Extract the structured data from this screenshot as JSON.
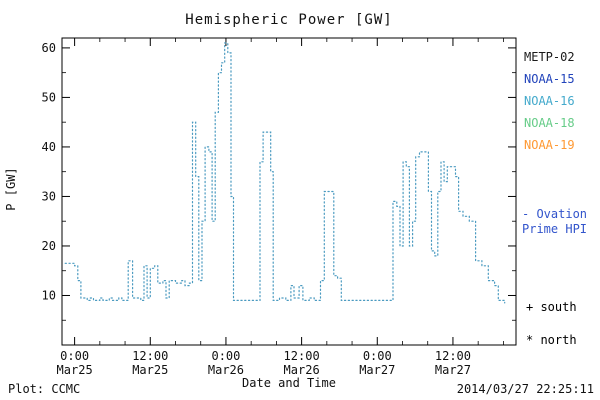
{
  "footer": {
    "left": "Plot: CCMC",
    "right": "2014/03/27 22:25:11"
  },
  "legend": [
    {
      "label": "METP-02",
      "color": "#1a1a1a"
    },
    {
      "label": "NOAA-15",
      "color": "#2244bb"
    },
    {
      "label": "NOAA-16",
      "color": "#44aacc"
    },
    {
      "label": "NOAA-18",
      "color": "#66cc88"
    },
    {
      "label": "NOAA-19",
      "color": "#ff9933"
    }
  ],
  "side_labels": {
    "ovation": {
      "line1": "- Ovation",
      "line2": "Prime HPI",
      "color": "#3355cc"
    },
    "south": {
      "label": "+ south",
      "color": "#000000"
    },
    "north": {
      "label": "* north",
      "color": "#000000"
    }
  },
  "chart_data": {
    "type": "line",
    "step": true,
    "style": "dotted",
    "color": "#4a9ac0",
    "title": "Hemispheric Power [GW]",
    "xlabel": "Date and Time",
    "ylabel": "P [GW]",
    "x_unit": "hours since 2014-03-25 00:00 UT",
    "xlim": [
      -2,
      70
    ],
    "ylim": [
      0,
      62
    ],
    "yticks": [
      10,
      20,
      30,
      40,
      50,
      60
    ],
    "x_minor_step": 4,
    "y_minor_step": 5,
    "xticks": [
      {
        "hour": 0,
        "time": "0:00",
        "date": "Mar25"
      },
      {
        "hour": 12,
        "time": "12:00",
        "date": "Mar25"
      },
      {
        "hour": 24,
        "time": "0:00",
        "date": "Mar26"
      },
      {
        "hour": 36,
        "time": "12:00",
        "date": "Mar26"
      },
      {
        "hour": 48,
        "time": "0:00",
        "date": "Mar27"
      },
      {
        "hour": 60,
        "time": "12:00",
        "date": "Mar27"
      }
    ],
    "points": [
      [
        -1.5,
        16.5
      ],
      [
        0,
        16
      ],
      [
        0.5,
        13
      ],
      [
        1,
        9.5
      ],
      [
        2,
        9
      ],
      [
        2.5,
        9.5
      ],
      [
        3,
        9
      ],
      [
        4,
        9.5
      ],
      [
        4.5,
        9
      ],
      [
        5.5,
        9.5
      ],
      [
        6,
        9
      ],
      [
        7,
        9.5
      ],
      [
        7.5,
        9
      ],
      [
        8.5,
        17
      ],
      [
        9.2,
        9.5
      ],
      [
        10.5,
        9
      ],
      [
        11,
        16
      ],
      [
        11.5,
        9.5
      ],
      [
        12,
        15.5
      ],
      [
        12.7,
        16
      ],
      [
        13.2,
        12.5
      ],
      [
        14,
        13
      ],
      [
        14.5,
        9.5
      ],
      [
        15,
        13
      ],
      [
        16,
        12.5
      ],
      [
        17,
        13
      ],
      [
        17.5,
        12
      ],
      [
        18.2,
        12.5
      ],
      [
        18.7,
        45
      ],
      [
        19.2,
        34
      ],
      [
        19.7,
        13
      ],
      [
        20.2,
        25
      ],
      [
        20.7,
        40
      ],
      [
        21.3,
        39
      ],
      [
        21.8,
        25
      ],
      [
        22.3,
        47
      ],
      [
        22.8,
        55
      ],
      [
        23.3,
        57
      ],
      [
        23.8,
        61
      ],
      [
        24.3,
        59
      ],
      [
        24.8,
        30
      ],
      [
        25.2,
        9
      ],
      [
        29,
        9
      ],
      [
        29.4,
        37
      ],
      [
        29.9,
        43
      ],
      [
        30.6,
        43
      ],
      [
        31.1,
        35
      ],
      [
        31.5,
        9
      ],
      [
        32.5,
        9.5
      ],
      [
        33.5,
        9
      ],
      [
        34.3,
        12
      ],
      [
        34.8,
        9.5
      ],
      [
        35.6,
        12
      ],
      [
        36.2,
        9
      ],
      [
        37.2,
        9.5
      ],
      [
        38,
        9
      ],
      [
        39,
        13
      ],
      [
        39.6,
        31
      ],
      [
        40.6,
        31
      ],
      [
        41.1,
        14
      ],
      [
        41.7,
        13.5
      ],
      [
        42.3,
        9
      ],
      [
        50,
        9
      ],
      [
        50.5,
        29
      ],
      [
        51.1,
        28
      ],
      [
        51.6,
        20
      ],
      [
        52.1,
        37
      ],
      [
        52.6,
        36
      ],
      [
        53.1,
        20
      ],
      [
        53.6,
        25
      ],
      [
        54.1,
        38
      ],
      [
        54.7,
        39
      ],
      [
        55.6,
        39
      ],
      [
        56.1,
        31
      ],
      [
        56.6,
        19
      ],
      [
        57.1,
        18
      ],
      [
        57.6,
        31
      ],
      [
        58.1,
        37
      ],
      [
        58.6,
        33
      ],
      [
        59.1,
        36
      ],
      [
        59.9,
        36
      ],
      [
        60.4,
        34
      ],
      [
        60.9,
        27
      ],
      [
        61.6,
        26
      ],
      [
        62.6,
        25
      ],
      [
        63.6,
        17
      ],
      [
        64.6,
        16
      ],
      [
        65.6,
        13
      ],
      [
        66.6,
        12
      ],
      [
        67.2,
        9
      ],
      [
        68.2,
        8.5
      ]
    ]
  }
}
